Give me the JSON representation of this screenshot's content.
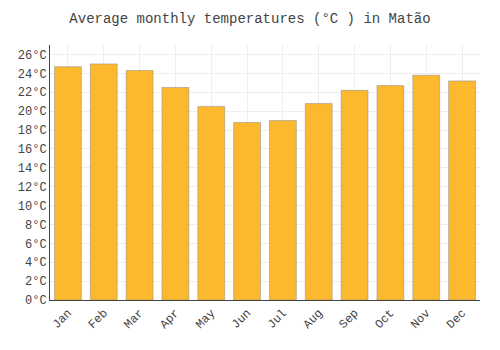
{
  "chart_data": {
    "type": "bar",
    "title": "Average monthly temperatures (°C ) in Matão",
    "categories": [
      "Jan",
      "Feb",
      "Mar",
      "Apr",
      "May",
      "Jun",
      "Jul",
      "Aug",
      "Sep",
      "Oct",
      "Nov",
      "Dec"
    ],
    "values": [
      24.7,
      25.0,
      24.3,
      22.5,
      20.5,
      18.8,
      19.0,
      20.8,
      22.2,
      22.7,
      23.8,
      23.2
    ],
    "color": "#FDB92E",
    "ylim": [
      0,
      27
    ],
    "yticks": [
      {
        "value": 0,
        "label": "0°C"
      },
      {
        "value": 2,
        "label": "2°C"
      },
      {
        "value": 4,
        "label": "4°C"
      },
      {
        "value": 6,
        "label": "6°C"
      },
      {
        "value": 8,
        "label": "8°C"
      },
      {
        "value": 10,
        "label": "10°C"
      },
      {
        "value": 12,
        "label": "12°C"
      },
      {
        "value": 14,
        "label": "14°C"
      },
      {
        "value": 16,
        "label": "16°C"
      },
      {
        "value": 18,
        "label": "18°C"
      },
      {
        "value": 20,
        "label": "20°C"
      },
      {
        "value": 22,
        "label": "22°C"
      },
      {
        "value": 24,
        "label": "24°C"
      },
      {
        "value": 26,
        "label": "26°C"
      }
    ],
    "grid": true
  }
}
